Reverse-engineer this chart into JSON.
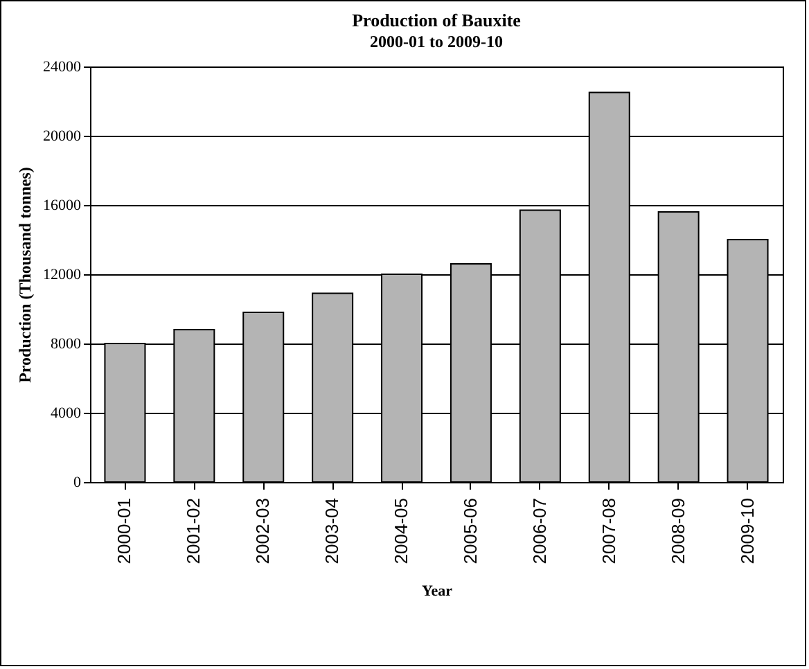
{
  "chart_data": {
    "type": "bar",
    "title": "Production of Bauxite",
    "subtitle": "2000-01 to 2009-10",
    "xlabel": "Year",
    "ylabel": "Production (Thousand tonnes)",
    "categories": [
      "2000-01",
      "2001-02",
      "2002-03",
      "2003-04",
      "2004-05",
      "2005-06",
      "2006-07",
      "2007-08",
      "2008-09",
      "2009-10"
    ],
    "values": [
      8000,
      8800,
      9800,
      10900,
      12000,
      12600,
      15700,
      22500,
      15600,
      14000
    ],
    "color": "#b4b4b4",
    "ylim": [
      0,
      24000
    ],
    "yticks": [
      0,
      4000,
      8000,
      12000,
      16000,
      20000,
      24000
    ],
    "grid": "y"
  }
}
